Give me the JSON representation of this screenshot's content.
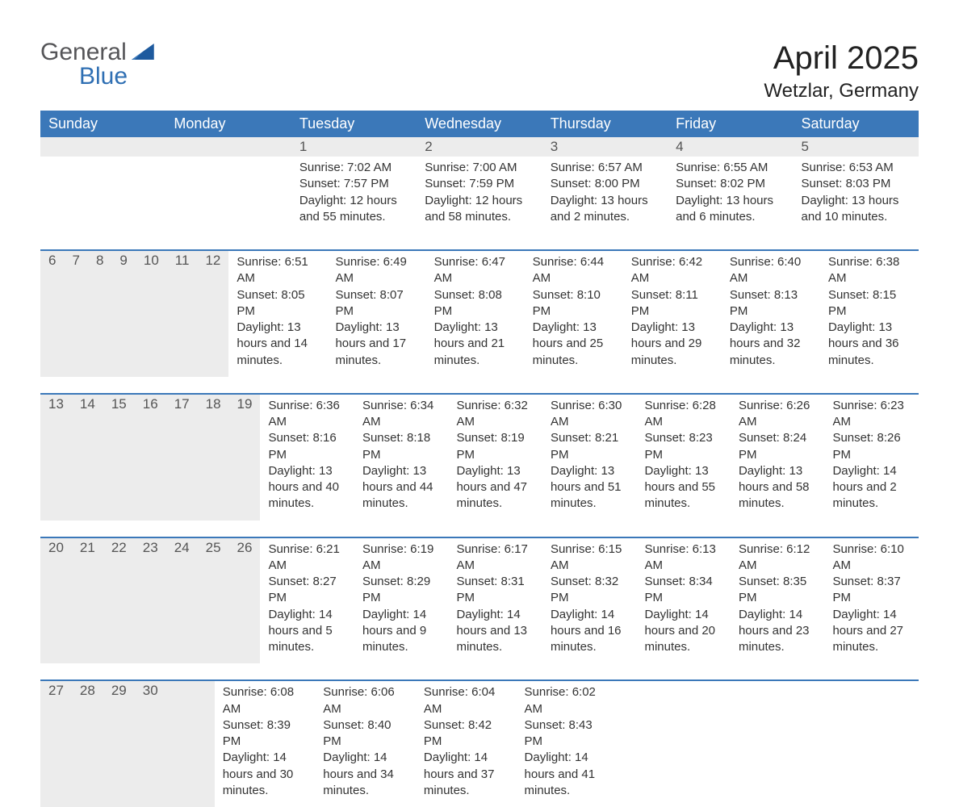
{
  "logo": {
    "text_top": "General",
    "text_bottom": "Blue"
  },
  "title": "April 2025",
  "location": "Wetzlar, Germany",
  "colors": {
    "header_bg": "#3b78b9",
    "header_text": "#ffffff",
    "daynum_bg": "#ececec",
    "week_border": "#3b78b9",
    "body_text": "#333333",
    "logo_gray": "#555558",
    "logo_blue": "#2f6fb3",
    "page_bg": "#ffffff"
  },
  "day_headers": [
    "Sunday",
    "Monday",
    "Tuesday",
    "Wednesday",
    "Thursday",
    "Friday",
    "Saturday"
  ],
  "weeks": [
    [
      {
        "n": "",
        "sunrise": "",
        "sunset": "",
        "daylight": ""
      },
      {
        "n": "",
        "sunrise": "",
        "sunset": "",
        "daylight": ""
      },
      {
        "n": "1",
        "sunrise": "Sunrise: 7:02 AM",
        "sunset": "Sunset: 7:57 PM",
        "daylight": "Daylight: 12 hours and 55 minutes."
      },
      {
        "n": "2",
        "sunrise": "Sunrise: 7:00 AM",
        "sunset": "Sunset: 7:59 PM",
        "daylight": "Daylight: 12 hours and 58 minutes."
      },
      {
        "n": "3",
        "sunrise": "Sunrise: 6:57 AM",
        "sunset": "Sunset: 8:00 PM",
        "daylight": "Daylight: 13 hours and 2 minutes."
      },
      {
        "n": "4",
        "sunrise": "Sunrise: 6:55 AM",
        "sunset": "Sunset: 8:02 PM",
        "daylight": "Daylight: 13 hours and 6 minutes."
      },
      {
        "n": "5",
        "sunrise": "Sunrise: 6:53 AM",
        "sunset": "Sunset: 8:03 PM",
        "daylight": "Daylight: 13 hours and 10 minutes."
      }
    ],
    [
      {
        "n": "6",
        "sunrise": "Sunrise: 6:51 AM",
        "sunset": "Sunset: 8:05 PM",
        "daylight": "Daylight: 13 hours and 14 minutes."
      },
      {
        "n": "7",
        "sunrise": "Sunrise: 6:49 AM",
        "sunset": "Sunset: 8:07 PM",
        "daylight": "Daylight: 13 hours and 17 minutes."
      },
      {
        "n": "8",
        "sunrise": "Sunrise: 6:47 AM",
        "sunset": "Sunset: 8:08 PM",
        "daylight": "Daylight: 13 hours and 21 minutes."
      },
      {
        "n": "9",
        "sunrise": "Sunrise: 6:44 AM",
        "sunset": "Sunset: 8:10 PM",
        "daylight": "Daylight: 13 hours and 25 minutes."
      },
      {
        "n": "10",
        "sunrise": "Sunrise: 6:42 AM",
        "sunset": "Sunset: 8:11 PM",
        "daylight": "Daylight: 13 hours and 29 minutes."
      },
      {
        "n": "11",
        "sunrise": "Sunrise: 6:40 AM",
        "sunset": "Sunset: 8:13 PM",
        "daylight": "Daylight: 13 hours and 32 minutes."
      },
      {
        "n": "12",
        "sunrise": "Sunrise: 6:38 AM",
        "sunset": "Sunset: 8:15 PM",
        "daylight": "Daylight: 13 hours and 36 minutes."
      }
    ],
    [
      {
        "n": "13",
        "sunrise": "Sunrise: 6:36 AM",
        "sunset": "Sunset: 8:16 PM",
        "daylight": "Daylight: 13 hours and 40 minutes."
      },
      {
        "n": "14",
        "sunrise": "Sunrise: 6:34 AM",
        "sunset": "Sunset: 8:18 PM",
        "daylight": "Daylight: 13 hours and 44 minutes."
      },
      {
        "n": "15",
        "sunrise": "Sunrise: 6:32 AM",
        "sunset": "Sunset: 8:19 PM",
        "daylight": "Daylight: 13 hours and 47 minutes."
      },
      {
        "n": "16",
        "sunrise": "Sunrise: 6:30 AM",
        "sunset": "Sunset: 8:21 PM",
        "daylight": "Daylight: 13 hours and 51 minutes."
      },
      {
        "n": "17",
        "sunrise": "Sunrise: 6:28 AM",
        "sunset": "Sunset: 8:23 PM",
        "daylight": "Daylight: 13 hours and 55 minutes."
      },
      {
        "n": "18",
        "sunrise": "Sunrise: 6:26 AM",
        "sunset": "Sunset: 8:24 PM",
        "daylight": "Daylight: 13 hours and 58 minutes."
      },
      {
        "n": "19",
        "sunrise": "Sunrise: 6:23 AM",
        "sunset": "Sunset: 8:26 PM",
        "daylight": "Daylight: 14 hours and 2 minutes."
      }
    ],
    [
      {
        "n": "20",
        "sunrise": "Sunrise: 6:21 AM",
        "sunset": "Sunset: 8:27 PM",
        "daylight": "Daylight: 14 hours and 5 minutes."
      },
      {
        "n": "21",
        "sunrise": "Sunrise: 6:19 AM",
        "sunset": "Sunset: 8:29 PM",
        "daylight": "Daylight: 14 hours and 9 minutes."
      },
      {
        "n": "22",
        "sunrise": "Sunrise: 6:17 AM",
        "sunset": "Sunset: 8:31 PM",
        "daylight": "Daylight: 14 hours and 13 minutes."
      },
      {
        "n": "23",
        "sunrise": "Sunrise: 6:15 AM",
        "sunset": "Sunset: 8:32 PM",
        "daylight": "Daylight: 14 hours and 16 minutes."
      },
      {
        "n": "24",
        "sunrise": "Sunrise: 6:13 AM",
        "sunset": "Sunset: 8:34 PM",
        "daylight": "Daylight: 14 hours and 20 minutes."
      },
      {
        "n": "25",
        "sunrise": "Sunrise: 6:12 AM",
        "sunset": "Sunset: 8:35 PM",
        "daylight": "Daylight: 14 hours and 23 minutes."
      },
      {
        "n": "26",
        "sunrise": "Sunrise: 6:10 AM",
        "sunset": "Sunset: 8:37 PM",
        "daylight": "Daylight: 14 hours and 27 minutes."
      }
    ],
    [
      {
        "n": "27",
        "sunrise": "Sunrise: 6:08 AM",
        "sunset": "Sunset: 8:39 PM",
        "daylight": "Daylight: 14 hours and 30 minutes."
      },
      {
        "n": "28",
        "sunrise": "Sunrise: 6:06 AM",
        "sunset": "Sunset: 8:40 PM",
        "daylight": "Daylight: 14 hours and 34 minutes."
      },
      {
        "n": "29",
        "sunrise": "Sunrise: 6:04 AM",
        "sunset": "Sunset: 8:42 PM",
        "daylight": "Daylight: 14 hours and 37 minutes."
      },
      {
        "n": "30",
        "sunrise": "Sunrise: 6:02 AM",
        "sunset": "Sunset: 8:43 PM",
        "daylight": "Daylight: 14 hours and 41 minutes."
      },
      {
        "n": "",
        "sunrise": "",
        "sunset": "",
        "daylight": ""
      },
      {
        "n": "",
        "sunrise": "",
        "sunset": "",
        "daylight": ""
      },
      {
        "n": "",
        "sunrise": "",
        "sunset": "",
        "daylight": ""
      }
    ]
  ]
}
